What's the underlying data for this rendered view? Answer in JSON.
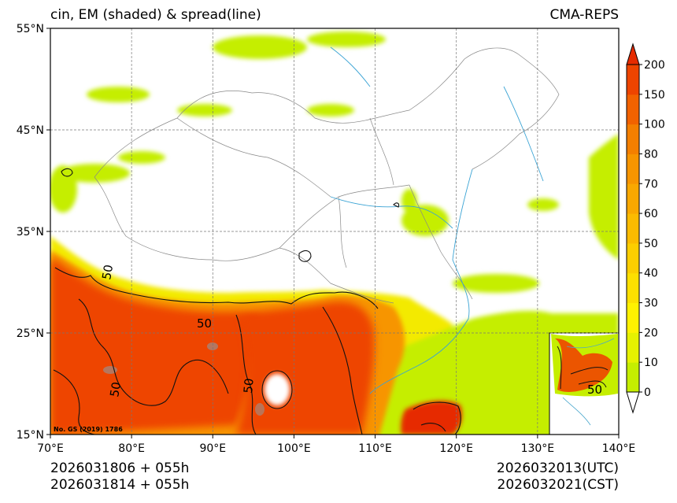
{
  "chart_data": {
    "type": "heatmap",
    "title_left": "cin, EM (shaded) & spread(line)",
    "title_right": "CMA-REPS",
    "x_axis": {
      "min": 70,
      "max": 140,
      "ticks": [
        70,
        80,
        90,
        100,
        110,
        120,
        130,
        140
      ],
      "tick_labels": [
        "70°E",
        "80°E",
        "90°E",
        "100°E",
        "110°E",
        "120°E",
        "130°E",
        "140°E"
      ]
    },
    "y_axis": {
      "min": 15,
      "max": 55,
      "ticks": [
        15,
        25,
        35,
        45,
        55
      ],
      "tick_labels": [
        "15°N",
        "25°N",
        "35°N",
        "45°N",
        "55°N"
      ]
    },
    "grid": true,
    "colorbar": {
      "levels": [
        0,
        10,
        20,
        30,
        40,
        50,
        60,
        70,
        80,
        100,
        150,
        200
      ],
      "labels": [
        "0",
        "10",
        "20",
        "30",
        "40",
        "50",
        "60",
        "70",
        "80",
        "100",
        "150",
        "200"
      ],
      "colors": [
        "#c5ee00",
        "#e6f200",
        "#fff200",
        "#fde000",
        "#fcce00",
        "#fbbb00",
        "#f9a800",
        "#f79500",
        "#f47f00",
        "#f26200",
        "#ee4400"
      ],
      "over_color": "#e62b00",
      "under_color": "#ffffff",
      "extend": "both"
    },
    "contour_label": "50",
    "credit": "No. GS (2019) 1786"
  },
  "footer": {
    "init_utc": "2026031806  +  055h",
    "init_cst": "2026031814  +  055h",
    "valid_utc": "2026032013(UTC)",
    "valid_cst": "2026032021(CST)"
  }
}
